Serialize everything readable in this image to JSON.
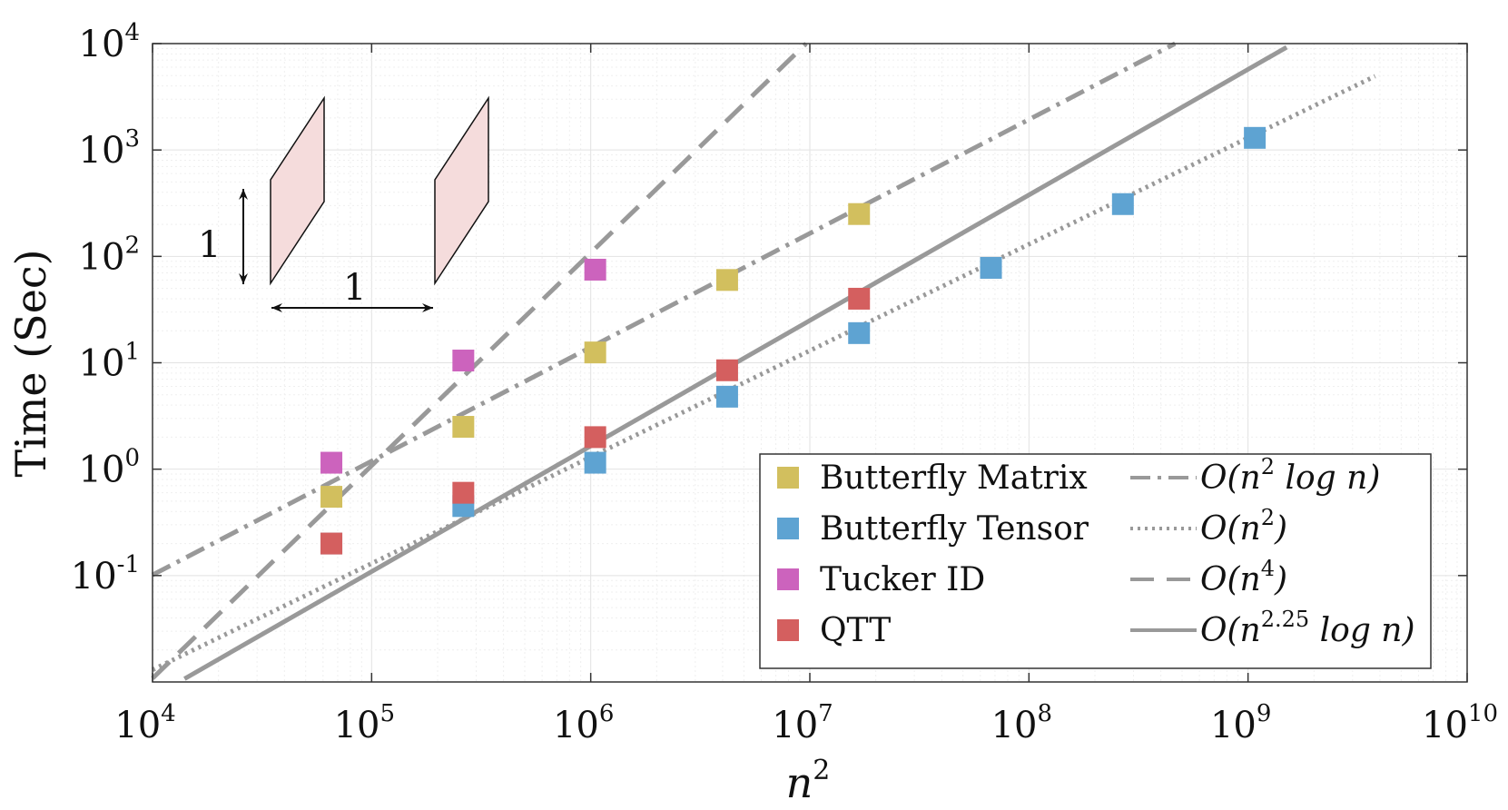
{
  "chart_data": {
    "type": "scatter",
    "xscale": "log",
    "yscale": "log",
    "xlim": [
      10000,
      10000000000
    ],
    "ylim": [
      0.01,
      10000
    ],
    "xlabel": "n²",
    "ylabel": "Time (Sec)",
    "grid": true,
    "legend_position": "bottom-right",
    "x_ticks": [
      {
        "value": 10000,
        "base": "10",
        "exp": "4"
      },
      {
        "value": 100000,
        "base": "10",
        "exp": "5"
      },
      {
        "value": 1000000,
        "base": "10",
        "exp": "6"
      },
      {
        "value": 10000000,
        "base": "10",
        "exp": "7"
      },
      {
        "value": 100000000,
        "base": "10",
        "exp": "8"
      },
      {
        "value": 1000000000,
        "base": "10",
        "exp": "9"
      },
      {
        "value": 10000000000,
        "base": "10",
        "exp": "10"
      }
    ],
    "y_ticks": [
      {
        "value": 0.1,
        "base": "10",
        "exp": "-1"
      },
      {
        "value": 1,
        "base": "10",
        "exp": "0"
      },
      {
        "value": 10,
        "base": "10",
        "exp": "1"
      },
      {
        "value": 100,
        "base": "10",
        "exp": "2"
      },
      {
        "value": 1000,
        "base": "10",
        "exp": "3"
      },
      {
        "value": 10000,
        "base": "10",
        "exp": "4"
      }
    ],
    "series": [
      {
        "name": "Butterfly Matrix",
        "color": "#d2bf5e",
        "points": [
          [
            65536,
            0.55
          ],
          [
            262144,
            2.5
          ],
          [
            1048576,
            12.5
          ],
          [
            4194304,
            60
          ],
          [
            16777216,
            250
          ]
        ]
      },
      {
        "name": "Butterfly Tensor",
        "color": "#5ea3d2",
        "points": [
          [
            65536,
            0.2
          ],
          [
            262144,
            0.45
          ],
          [
            1048576,
            1.15
          ],
          [
            4194304,
            4.8
          ],
          [
            16777216,
            19
          ],
          [
            67108864,
            78
          ],
          [
            268435456,
            310
          ],
          [
            1073741824,
            1300
          ]
        ]
      },
      {
        "name": "Tucker ID",
        "color": "#cc63bd",
        "points": [
          [
            65536,
            1.15
          ],
          [
            262144,
            10.5
          ],
          [
            1048576,
            75
          ]
        ]
      },
      {
        "name": "QTT",
        "color": "#d45f5f",
        "points": [
          [
            65536,
            0.2
          ],
          [
            262144,
            0.6
          ],
          [
            1048576,
            2.0
          ],
          [
            4194304,
            8.5
          ],
          [
            16777216,
            40
          ]
        ]
      }
    ],
    "reference_lines": [
      {
        "name": "O(n² log n)",
        "style": "dashdot",
        "x_start": 10000,
        "x_end": 470000000,
        "y_at_1e6": 14,
        "slope": 1.07
      },
      {
        "name": "O(n²)",
        "style": "dotted",
        "x_start": 10000,
        "x_end": 3800000000,
        "y_at_1e6": 1.3,
        "slope": 1.0
      },
      {
        "name": "O(n⁴)",
        "style": "dashed",
        "x_start": 10000,
        "x_end": 10000000,
        "y_at_1e6": 108,
        "slope": 2.0
      },
      {
        "name": "O(n^2.25 log n)",
        "style": "solid",
        "x_start": 14000,
        "x_end": 1500000000,
        "y_at_1e6": 1.65,
        "slope": 1.18
      }
    ],
    "legend": {
      "markers": [
        "Butterfly Matrix",
        "Butterfly Tensor",
        "Tucker ID",
        "QTT"
      ],
      "lines": [
        {
          "style": "dashdot",
          "parts": [
            "O(n",
            "2",
            " log n)"
          ]
        },
        {
          "style": "dotted",
          "parts": [
            "O(n",
            "2",
            ")"
          ]
        },
        {
          "style": "dashed",
          "parts": [
            "O(n",
            "4",
            ")"
          ]
        },
        {
          "style": "solid",
          "parts": [
            "O(n",
            "2.25",
            " log n)"
          ]
        }
      ]
    },
    "inset": {
      "vertical_label": "1",
      "horizontal_label": "1"
    }
  },
  "colors": {
    "reference_line": "#999999",
    "inset_fill": "#f5dcdc",
    "axis": "#333333",
    "grid": "#e6e6e6"
  }
}
